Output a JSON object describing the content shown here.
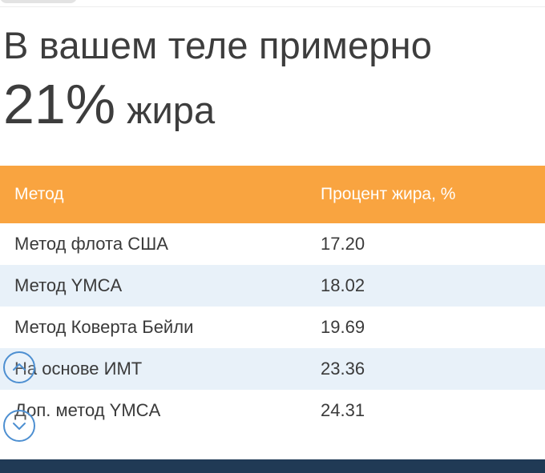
{
  "result": {
    "prefix": "В вашем теле примерно",
    "value": "21%",
    "unit": "жира"
  },
  "table": {
    "headers": [
      "Метод",
      "Процент жира, %"
    ],
    "rows": [
      {
        "method": "Метод флота США",
        "percent": "17.20"
      },
      {
        "method": "Метод YMCA",
        "percent": "18.02"
      },
      {
        "method": "Метод Коверта Бейли",
        "percent": "19.69"
      },
      {
        "method": "На основе ИМТ",
        "percent": "23.36"
      },
      {
        "method": "Доп. метод YMCA",
        "percent": "24.31"
      }
    ]
  },
  "colors": {
    "header_bg": "#f9a440",
    "alt_row_bg": "#e8f1f9",
    "accent": "#4d8fd1",
    "bottom_bar": "#203a55"
  },
  "icons": {
    "scroll_up": "chevron-up-circle-icon",
    "scroll_down": "chevron-down-circle-icon"
  }
}
